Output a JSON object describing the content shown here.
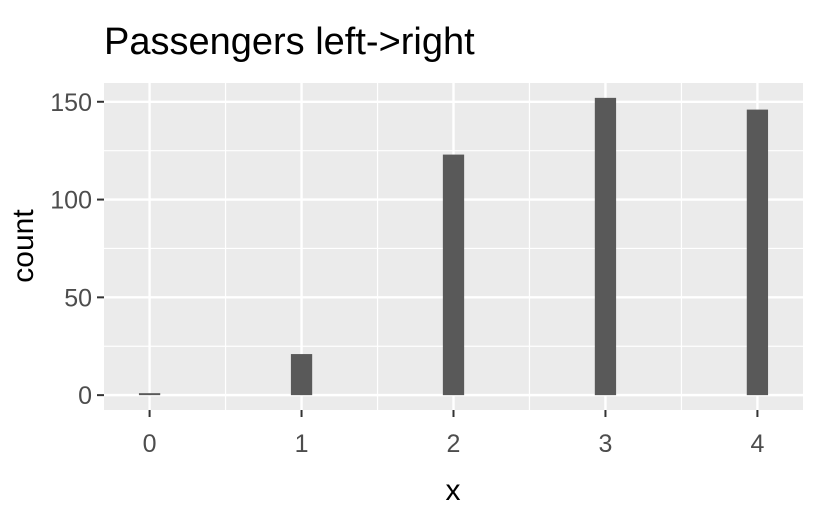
{
  "chart_data": {
    "type": "bar",
    "title": "Passengers left->right",
    "xlabel": "x",
    "ylabel": "count",
    "categories": [
      0,
      1,
      2,
      3,
      4
    ],
    "values": [
      1,
      21,
      123,
      152,
      146
    ],
    "xlim": [
      -0.3,
      4.3
    ],
    "ylim": [
      -7.6,
      159.6
    ],
    "x_ticks": [
      0,
      1,
      2,
      3,
      4
    ],
    "y_ticks": [
      0,
      50,
      100,
      150
    ],
    "grid": true,
    "legend": "none",
    "colors": {
      "panel": "#ebebeb",
      "grid": "#ffffff",
      "bar": "#595959",
      "tick": "#333333"
    }
  }
}
